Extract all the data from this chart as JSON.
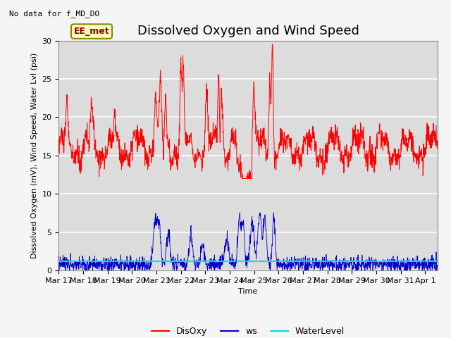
{
  "title": "Dissolved Oxygen and Wind Speed",
  "subtitle": "No data for f_MD_DO",
  "xlabel": "Time",
  "ylabel": "Dissolved Oxygen (mV), Wind Speed, Water Lvl (psi)",
  "ylim": [
    0,
    30
  ],
  "yticks": [
    0,
    5,
    10,
    15,
    20,
    25,
    30
  ],
  "xtick_labels": [
    "Mar 17",
    "Mar 18",
    "Mar 19",
    "Mar 20",
    "Mar 21",
    "Mar 22",
    "Mar 23",
    "Mar 24",
    "Mar 25",
    "Mar 26",
    "Mar 27",
    "Mar 28",
    "Mar 29",
    "Mar 30",
    "Mar 31",
    "Apr 1"
  ],
  "disoxy_color": "#ff0000",
  "ws_color": "#0000cc",
  "water_color": "#00dddd",
  "legend_labels": [
    "DisOxy",
    "ws",
    "WaterLevel"
  ],
  "annotation_text": "EE_met",
  "background_color": "#dcdcdc",
  "fig_background": "#f5f5f5",
  "grid_color": "#ffffff",
  "title_fontsize": 13,
  "axis_fontsize": 8,
  "tick_fontsize": 8
}
